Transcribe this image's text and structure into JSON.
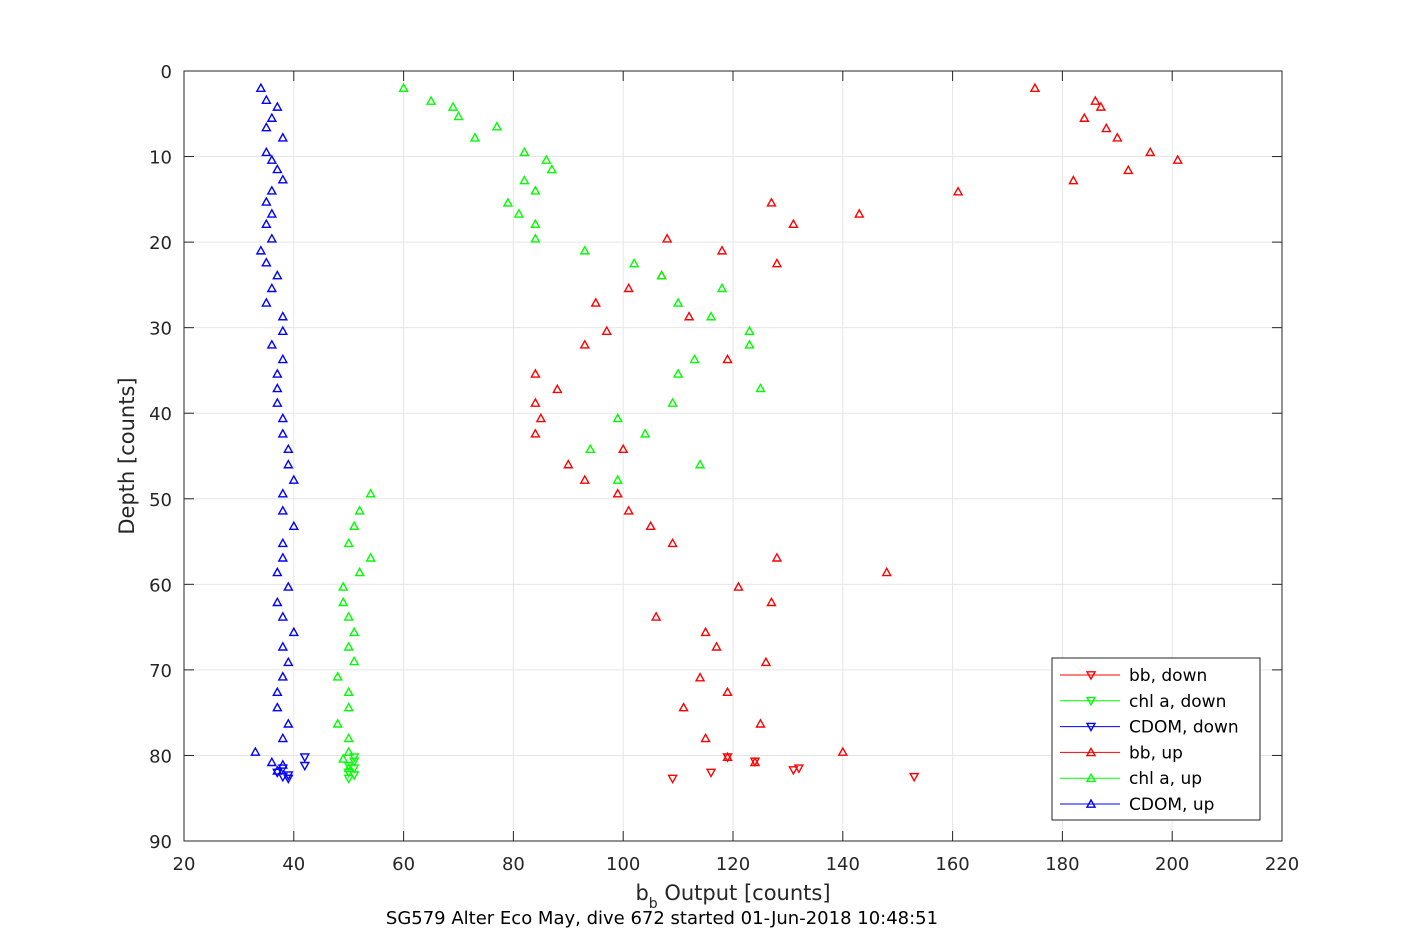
{
  "chart_data": {
    "type": "scatter",
    "title": "",
    "xlabel": "b",
    "xlabel_sub": "b",
    "xlabel_suffix": " Output [counts]",
    "ylabel": "Depth [counts]",
    "footer": "SG579 Alter Eco May, dive 672 started 01-Jun-2018 10:48:51",
    "xlim": [
      20,
      220
    ],
    "ylim": [
      0,
      90
    ],
    "y_reversed": true,
    "grid": true,
    "x_ticks": [
      "20",
      "40",
      "60",
      "80",
      "100",
      "120",
      "140",
      "160",
      "180",
      "200",
      "220"
    ],
    "y_ticks": [
      "0",
      "10",
      "20",
      "30",
      "40",
      "50",
      "60",
      "70",
      "80",
      "90"
    ],
    "legend_position": "bottom-right",
    "series": [
      {
        "name": "bb, down",
        "color": "#ff0000",
        "marker": "triangle-down",
        "x": [
          119,
          124,
          132,
          131,
          116,
          153,
          109
        ],
        "y": [
          80.2,
          80.7,
          81.5,
          81.7,
          82.0,
          82.5,
          82.7
        ]
      },
      {
        "name": "chl a, down",
        "color": "#00ff00",
        "marker": "triangle-down",
        "x": [
          51,
          51,
          50,
          51,
          50,
          51,
          50
        ],
        "y": [
          80.2,
          80.7,
          81.2,
          81.5,
          82.0,
          82.3,
          82.7
        ]
      },
      {
        "name": "CDOM, down",
        "color": "#0000ff",
        "marker": "triangle-down",
        "x": [
          42,
          42,
          38,
          37,
          39,
          38,
          39
        ],
        "y": [
          80.2,
          81.2,
          81.5,
          82.0,
          82.3,
          82.5,
          82.7
        ]
      },
      {
        "name": "bb, up",
        "color": "#ff0000",
        "marker": "triangle-up",
        "x": [
          175,
          186,
          187,
          184,
          188,
          190,
          196,
          201,
          192,
          182,
          161,
          127,
          143,
          131,
          108,
          118,
          128,
          107,
          101,
          95,
          112,
          97,
          93,
          119,
          84,
          88,
          84,
          85,
          84,
          100,
          90,
          93,
          99,
          101,
          105,
          109,
          128,
          148,
          121,
          127,
          106,
          115,
          117,
          126,
          114,
          119,
          111,
          125,
          115,
          140,
          119,
          124
        ],
        "y": [
          2.0,
          3.5,
          4.2,
          5.5,
          6.7,
          7.8,
          9.5,
          10.4,
          11.6,
          12.8,
          14.1,
          15.4,
          16.7,
          17.9,
          19.6,
          21.0,
          22.5,
          23.9,
          25.4,
          27.1,
          28.7,
          30.4,
          32.0,
          33.7,
          35.4,
          37.2,
          38.8,
          40.6,
          42.4,
          44.2,
          46.0,
          47.8,
          49.4,
          51.4,
          53.2,
          55.2,
          56.9,
          58.6,
          60.3,
          62.1,
          63.8,
          65.6,
          67.3,
          69.1,
          70.9,
          72.6,
          74.4,
          76.3,
          78.0,
          79.6,
          80.2,
          80.8
        ]
      },
      {
        "name": "chl a, up",
        "color": "#00ff00",
        "marker": "triangle-up",
        "x": [
          60,
          65,
          69,
          70,
          77,
          73,
          82,
          86,
          87,
          82,
          84,
          79,
          81,
          84,
          84,
          93,
          102,
          107,
          118,
          110,
          116,
          123,
          123,
          113,
          110,
          125,
          109,
          99,
          104,
          94,
          114,
          99,
          54,
          52,
          51,
          50,
          54,
          52,
          49,
          49,
          50,
          51,
          50,
          51,
          48,
          50,
          50,
          48,
          50,
          50,
          49,
          50
        ],
        "y": [
          2.0,
          3.5,
          4.2,
          5.3,
          6.5,
          7.8,
          9.5,
          10.4,
          11.5,
          12.8,
          14.0,
          15.4,
          16.7,
          17.9,
          19.6,
          21.0,
          22.5,
          23.9,
          25.4,
          27.1,
          28.7,
          30.4,
          32.0,
          33.7,
          35.4,
          37.1,
          38.8,
          40.6,
          42.4,
          44.2,
          46.0,
          47.8,
          49.4,
          51.4,
          53.2,
          55.2,
          56.9,
          58.6,
          60.3,
          62.1,
          63.8,
          65.6,
          67.3,
          69.0,
          70.8,
          72.6,
          74.4,
          76.3,
          78.0,
          79.6,
          80.4,
          81.5
        ]
      },
      {
        "name": "CDOM, up",
        "color": "#0000ff",
        "marker": "triangle-up",
        "x": [
          34,
          35,
          37,
          36,
          35,
          38,
          35,
          36,
          37,
          38,
          36,
          35,
          36,
          35,
          36,
          34,
          35,
          37,
          36,
          35,
          38,
          38,
          36,
          38,
          37,
          37,
          37,
          38,
          38,
          39,
          39,
          40,
          38,
          38,
          40,
          38,
          38,
          37,
          39,
          37,
          38,
          40,
          38,
          39,
          38,
          37,
          37,
          39,
          38,
          33,
          36,
          38,
          37
        ],
        "y": [
          2.0,
          3.4,
          4.2,
          5.5,
          6.6,
          7.8,
          9.5,
          10.4,
          11.5,
          12.7,
          14.0,
          15.3,
          16.7,
          17.9,
          19.6,
          21.0,
          22.4,
          23.9,
          25.4,
          27.1,
          28.7,
          30.4,
          32.0,
          33.7,
          35.4,
          37.1,
          38.8,
          40.6,
          42.4,
          44.2,
          46.0,
          47.8,
          49.4,
          51.4,
          53.2,
          55.2,
          56.9,
          58.6,
          60.3,
          62.1,
          63.8,
          65.6,
          67.3,
          69.1,
          70.8,
          72.6,
          74.4,
          76.3,
          78.0,
          79.6,
          80.8,
          81.1,
          81.8
        ]
      }
    ]
  }
}
